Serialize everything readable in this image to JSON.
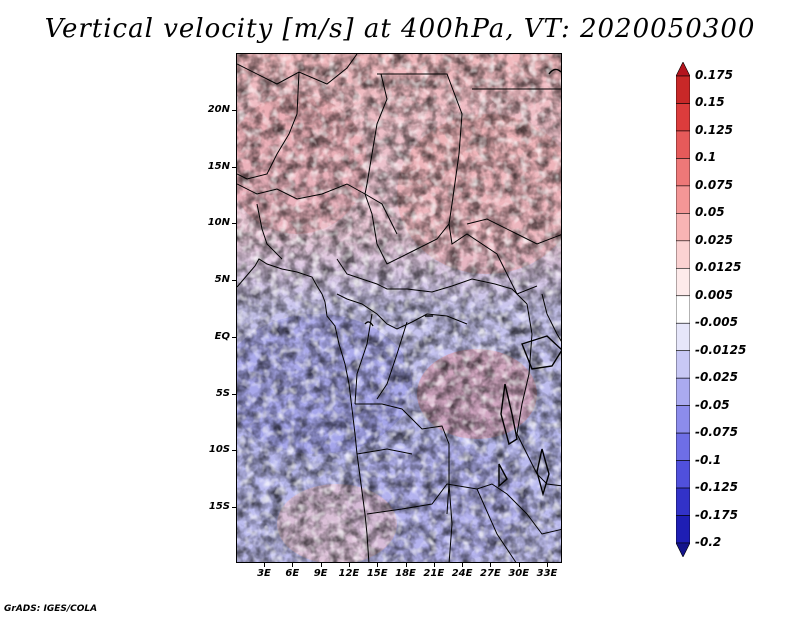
{
  "title": "Vertical velocity [m/s] at 400hPa, VT: 2020050300",
  "credit": "GrADS: IGES/COLA",
  "lat_labels": [
    "20N",
    "15N",
    "10N",
    "5N",
    "EQ",
    "5S",
    "10S",
    "15S"
  ],
  "lon_labels": [
    "3E",
    "6E",
    "9E",
    "12E",
    "15E",
    "18E",
    "21E",
    "24E",
    "27E",
    "30E",
    "33E"
  ],
  "colorbar": {
    "labels": [
      "0.175",
      "0.15",
      "0.125",
      "0.1",
      "0.075",
      "0.05",
      "0.025",
      "0.0125",
      "0.005",
      "-0.005",
      "-0.0125",
      "-0.025",
      "-0.05",
      "-0.075",
      "-0.1",
      "-0.125",
      "-0.175",
      "-0.2"
    ],
    "colors": [
      "#b4141e",
      "#c82828",
      "#dc3c3c",
      "#e65a5a",
      "#ee7878",
      "#f49696",
      "#f8b4b4",
      "#fbd2d2",
      "#fdeaea",
      "#ffffff",
      "#e6e6fa",
      "#c8c8f5",
      "#aaaaf0",
      "#8c8cec",
      "#6e6ee6",
      "#5050dc",
      "#3232c8",
      "#1e1eb4",
      "#14148c"
    ]
  }
}
